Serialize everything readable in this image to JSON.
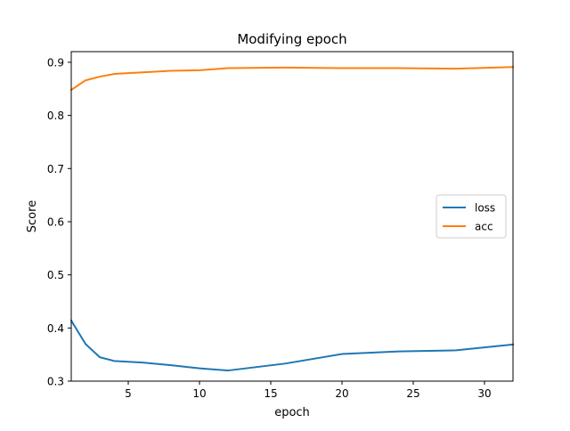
{
  "chart_data": {
    "type": "line",
    "title": "Modifying epoch",
    "xlabel": "epoch",
    "ylabel": "Score",
    "xlim": [
      1,
      32
    ],
    "ylim": [
      0.3,
      0.92
    ],
    "xticks": [
      5,
      10,
      15,
      20,
      25,
      30
    ],
    "yticks": [
      0.3,
      0.4,
      0.5,
      0.6,
      0.7,
      0.8,
      0.9
    ],
    "ytick_labels": [
      "0.3",
      "0.4",
      "0.5",
      "0.6",
      "0.7",
      "0.8",
      "0.9"
    ],
    "legend_position": "center-right",
    "grid": false,
    "series": [
      {
        "name": "loss",
        "color": "#1f77b4",
        "x": [
          1,
          2,
          3,
          4,
          6,
          8,
          10,
          12,
          16,
          20,
          24,
          28,
          32
        ],
        "values": [
          0.414,
          0.37,
          0.345,
          0.338,
          0.335,
          0.33,
          0.324,
          0.32,
          0.333,
          0.351,
          0.356,
          0.358,
          0.369
        ]
      },
      {
        "name": "acc",
        "color": "#ff7f0e",
        "x": [
          1,
          2,
          3,
          4,
          6,
          8,
          10,
          12,
          16,
          20,
          24,
          28,
          32
        ],
        "values": [
          0.848,
          0.866,
          0.873,
          0.878,
          0.881,
          0.884,
          0.885,
          0.889,
          0.89,
          0.889,
          0.889,
          0.888,
          0.891
        ]
      }
    ]
  }
}
